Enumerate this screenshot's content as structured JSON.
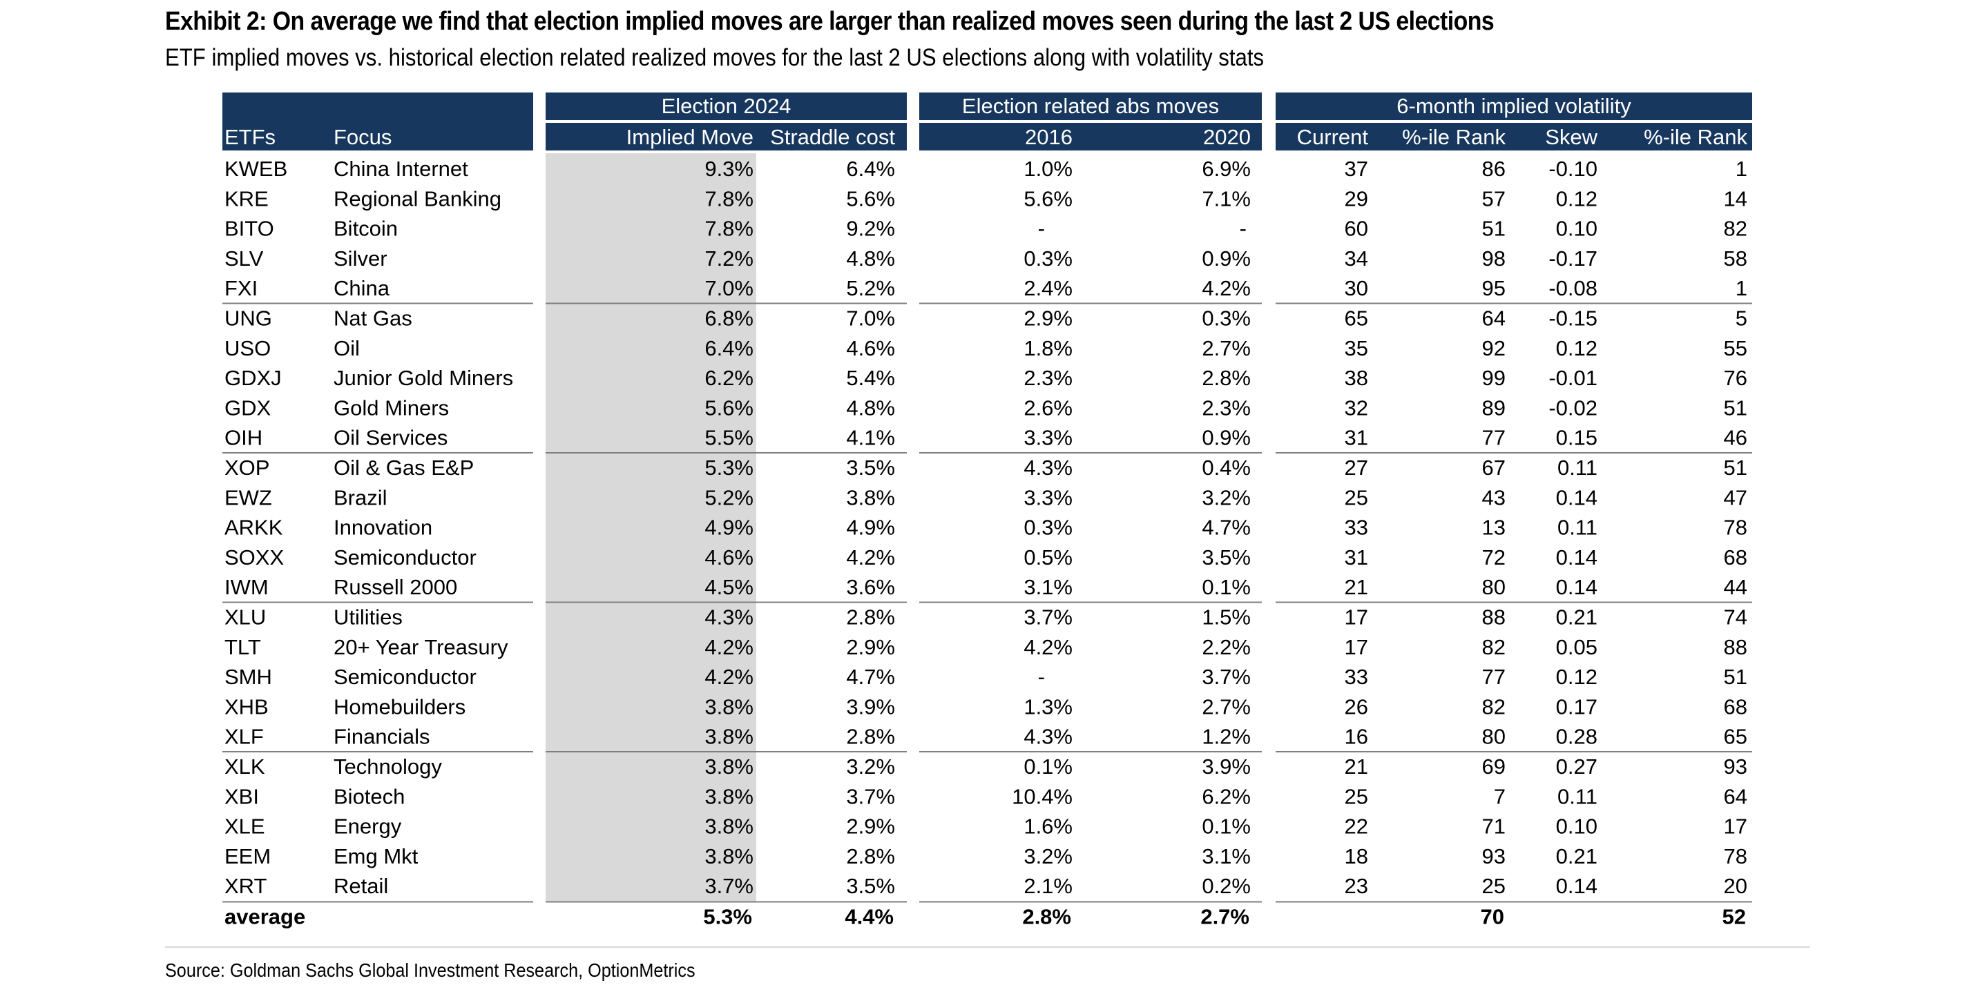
{
  "title": "Exhibit 2: On average we find that election implied moves are larger than realized moves seen during the last 2 US elections",
  "subtitle": "ETF implied moves vs. historical election related realized moves for the last 2 US elections along with volatility stats",
  "source": "Source: Goldman Sachs Global Investment Research, OptionMetrics",
  "colors": {
    "header_bg": "#17375e",
    "header_text": "#ffffff",
    "shade": "#d9d9d9",
    "rule": "#7f7f7f"
  },
  "chart_data": {
    "type": "table",
    "group_headers": [
      "Election 2024",
      "Election related abs moves",
      "6-month implied volatility"
    ],
    "columns": [
      "ETFs",
      "Focus",
      "Implied Move",
      "Straddle cost",
      "2016",
      "2020",
      "Current",
      "%-ile Rank",
      "Skew",
      "%-ile Rank"
    ],
    "rows": [
      [
        "KWEB",
        "China Internet",
        "9.3%",
        "6.4%",
        "1.0%",
        "6.9%",
        "37",
        "86",
        "-0.10",
        "1"
      ],
      [
        "KRE",
        "Regional Banking",
        "7.8%",
        "5.6%",
        "5.6%",
        "7.1%",
        "29",
        "57",
        "0.12",
        "14"
      ],
      [
        "BITO",
        "Bitcoin",
        "7.8%",
        "9.2%",
        "-",
        "-",
        "60",
        "51",
        "0.10",
        "82"
      ],
      [
        "SLV",
        "Silver",
        "7.2%",
        "4.8%",
        "0.3%",
        "0.9%",
        "34",
        "98",
        "-0.17",
        "58"
      ],
      [
        "FXI",
        "China",
        "7.0%",
        "5.2%",
        "2.4%",
        "4.2%",
        "30",
        "95",
        "-0.08",
        "1"
      ],
      [
        "UNG",
        "Nat Gas",
        "6.8%",
        "7.0%",
        "2.9%",
        "0.3%",
        "65",
        "64",
        "-0.15",
        "5"
      ],
      [
        "USO",
        "Oil",
        "6.4%",
        "4.6%",
        "1.8%",
        "2.7%",
        "35",
        "92",
        "0.12",
        "55"
      ],
      [
        "GDXJ",
        "Junior Gold Miners",
        "6.2%",
        "5.4%",
        "2.3%",
        "2.8%",
        "38",
        "99",
        "-0.01",
        "76"
      ],
      [
        "GDX",
        "Gold Miners",
        "5.6%",
        "4.8%",
        "2.6%",
        "2.3%",
        "32",
        "89",
        "-0.02",
        "51"
      ],
      [
        "OIH",
        "Oil Services",
        "5.5%",
        "4.1%",
        "3.3%",
        "0.9%",
        "31",
        "77",
        "0.15",
        "46"
      ],
      [
        "XOP",
        "Oil & Gas E&P",
        "5.3%",
        "3.5%",
        "4.3%",
        "0.4%",
        "27",
        "67",
        "0.11",
        "51"
      ],
      [
        "EWZ",
        "Brazil",
        "5.2%",
        "3.8%",
        "3.3%",
        "3.2%",
        "25",
        "43",
        "0.14",
        "47"
      ],
      [
        "ARKK",
        "Innovation",
        "4.9%",
        "4.9%",
        "0.3%",
        "4.7%",
        "33",
        "13",
        "0.11",
        "78"
      ],
      [
        "SOXX",
        "Semiconductor",
        "4.6%",
        "4.2%",
        "0.5%",
        "3.5%",
        "31",
        "72",
        "0.14",
        "68"
      ],
      [
        "IWM",
        "Russell 2000",
        "4.5%",
        "3.6%",
        "3.1%",
        "0.1%",
        "21",
        "80",
        "0.14",
        "44"
      ],
      [
        "XLU",
        "Utilities",
        "4.3%",
        "2.8%",
        "3.7%",
        "1.5%",
        "17",
        "88",
        "0.21",
        "74"
      ],
      [
        "TLT",
        "20+ Year Treasury",
        "4.2%",
        "2.9%",
        "4.2%",
        "2.2%",
        "17",
        "82",
        "0.05",
        "88"
      ],
      [
        "SMH",
        "Semiconductor",
        "4.2%",
        "4.7%",
        "-",
        "3.7%",
        "33",
        "77",
        "0.12",
        "51"
      ],
      [
        "XHB",
        "Homebuilders",
        "3.8%",
        "3.9%",
        "1.3%",
        "2.7%",
        "26",
        "82",
        "0.17",
        "68"
      ],
      [
        "XLF",
        "Financials",
        "3.8%",
        "2.8%",
        "4.3%",
        "1.2%",
        "16",
        "80",
        "0.28",
        "65"
      ],
      [
        "XLK",
        "Technology",
        "3.8%",
        "3.2%",
        "0.1%",
        "3.9%",
        "21",
        "69",
        "0.27",
        "93"
      ],
      [
        "XBI",
        "Biotech",
        "3.8%",
        "3.7%",
        "10.4%",
        "6.2%",
        "25",
        "7",
        "0.11",
        "64"
      ],
      [
        "XLE",
        "Energy",
        "3.8%",
        "2.9%",
        "1.6%",
        "0.1%",
        "22",
        "71",
        "0.10",
        "17"
      ],
      [
        "EEM",
        "Emg Mkt",
        "3.8%",
        "2.8%",
        "3.2%",
        "3.1%",
        "18",
        "93",
        "0.21",
        "78"
      ],
      [
        "XRT",
        "Retail",
        "3.7%",
        "3.5%",
        "2.1%",
        "0.2%",
        "23",
        "25",
        "0.14",
        "20"
      ]
    ],
    "average_row": [
      "average",
      "",
      "5.3%",
      "4.4%",
      "2.8%",
      "2.7%",
      "",
      "70",
      "",
      "52"
    ]
  }
}
